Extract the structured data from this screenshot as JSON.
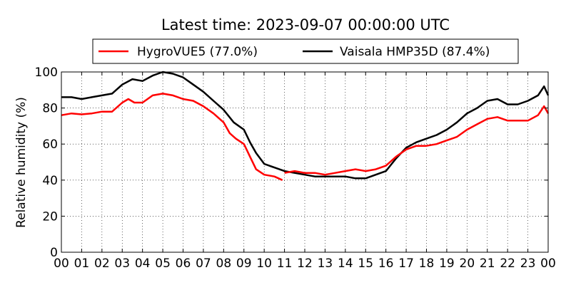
{
  "chart_data": {
    "type": "line",
    "title": "Latest time: 2023-09-07 00:00:00 UTC",
    "xlabel": "",
    "ylabel": "Relative humidity (%)",
    "xlim": [
      0,
      24
    ],
    "ylim": [
      0,
      100
    ],
    "grid": true,
    "legend_position": "top",
    "x_ticks": [
      0,
      1,
      2,
      3,
      4,
      5,
      6,
      7,
      8,
      9,
      10,
      11,
      12,
      13,
      14,
      15,
      16,
      17,
      18,
      19,
      20,
      21,
      22,
      23,
      24
    ],
    "x_tick_labels": [
      "00",
      "01",
      "02",
      "03",
      "04",
      "05",
      "06",
      "07",
      "08",
      "09",
      "10",
      "11",
      "12",
      "13",
      "14",
      "15",
      "16",
      "17",
      "18",
      "19",
      "20",
      "21",
      "22",
      "23",
      "00"
    ],
    "y_ticks": [
      0,
      20,
      40,
      60,
      80,
      100
    ],
    "y_tick_labels": [
      "0",
      "20",
      "40",
      "60",
      "80",
      "100"
    ],
    "series": [
      {
        "name": "HygroVUE5 (77.0%)",
        "color": "#ff0000",
        "x": [
          0,
          0.5,
          1,
          1.5,
          2,
          2.5,
          3,
          3.3,
          3.6,
          4,
          4.5,
          5,
          5.5,
          6,
          6.5,
          7,
          7.5,
          8,
          8.3,
          8.6,
          9,
          9.3,
          9.6,
          10,
          10.5,
          10.9
        ],
        "y": [
          76,
          77,
          76.5,
          77,
          78,
          78,
          83,
          85,
          83,
          83,
          87,
          88,
          87,
          85,
          84,
          81,
          77,
          72,
          66,
          63,
          60,
          53,
          46,
          43,
          42,
          40
        ]
      },
      {
        "name": "Vaisala HMP35D (87.4%)",
        "color": "#000000",
        "x": [
          0,
          0.5,
          1,
          1.5,
          2,
          2.5,
          3,
          3.5,
          4,
          4.5,
          5,
          5.5,
          6,
          6.5,
          7,
          7.5,
          8,
          8.5,
          9,
          9.3,
          9.6,
          10,
          10.5,
          11,
          11.5,
          12,
          12.5,
          13,
          13.5,
          14,
          14.5,
          15,
          15.5,
          16,
          16.5,
          17,
          17.5,
          18,
          18.5,
          19,
          19.5,
          20,
          20.5,
          21,
          21.5,
          22,
          22.5,
          23,
          23.5,
          23.8,
          24
        ],
        "y": [
          86,
          86,
          85,
          86,
          87,
          88,
          93,
          96,
          95,
          98,
          100,
          99,
          97,
          93,
          89,
          84,
          79,
          72,
          68,
          61,
          55,
          49,
          47,
          45,
          44,
          43,
          42,
          42,
          42,
          42,
          41,
          41,
          43,
          45,
          52,
          58,
          61,
          63,
          65,
          68,
          72,
          77,
          80,
          84,
          85,
          82,
          82,
          84,
          87,
          92,
          87
        ]
      },
      {
        "name": "",
        "color": "#ff0000",
        "x": [
          11,
          11.5,
          12,
          12.5,
          13,
          13.5,
          14,
          14.5,
          15,
          15.5,
          16,
          16.5,
          17,
          17.5,
          18,
          18.5,
          19,
          19.5,
          20,
          20.5,
          21,
          21.5,
          22,
          22.5,
          23,
          23.5,
          23.8,
          24
        ],
        "y": [
          44,
          45,
          44,
          44,
          43,
          44,
          45,
          46,
          45,
          46,
          48,
          53,
          57,
          59,
          59,
          60,
          62,
          64,
          68,
          71,
          74,
          75,
          73,
          73,
          73,
          76,
          81,
          77
        ]
      }
    ]
  }
}
